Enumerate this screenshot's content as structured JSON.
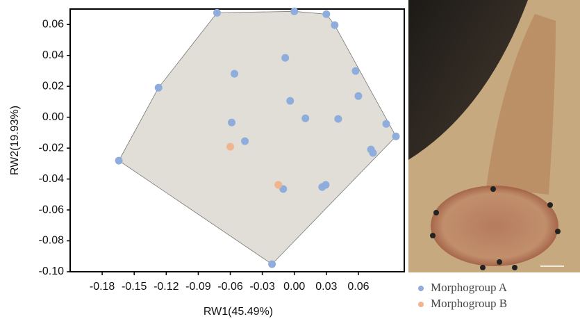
{
  "chart_data": {
    "type": "scatter",
    "x_label": "RW1(45.49%)",
    "y_label": "RW2(19.93%)",
    "xlim": [
      -0.21,
      0.103
    ],
    "ylim": [
      -0.1,
      0.07
    ],
    "xticks": [
      -0.18,
      -0.15,
      -0.12,
      -0.09,
      -0.06,
      -0.03,
      {
        "value": 0,
        "label": "0.00"
      },
      0.03,
      0.06
    ],
    "yticks": [
      0.06,
      0.04,
      0.02,
      {
        "value": 0,
        "label": "0.00"
      },
      -0.02,
      -0.04,
      -0.06,
      -0.08,
      {
        "value": -0.1,
        "label": "-0.10"
      }
    ],
    "series": [
      {
        "name": "Morphogroup A",
        "color": "#8eacdc",
        "x": [
          -0.0724,
          0.0,
          0.03,
          0.0378,
          -0.0085,
          -0.0561,
          -0.1272,
          0.0574,
          0.06,
          -0.0039,
          0.0104,
          0.0411,
          -0.0587,
          0.0861,
          0.0952,
          -0.0463,
          0.0718,
          0.0737,
          -0.1644,
          0.0294,
          0.0261,
          -0.0104,
          -0.0209
        ],
        "values": [
          0.0676,
          0.0685,
          0.0667,
          0.0596,
          0.0384,
          0.0281,
          0.0191,
          0.0299,
          0.0137,
          0.0106,
          -0.0007,
          -0.0011,
          -0.0034,
          -0.0043,
          -0.0124,
          -0.0155,
          -0.0209,
          -0.0231,
          -0.0281,
          -0.0438,
          -0.0452,
          -0.0465,
          -0.0951
        ]
      },
      {
        "name": "Morphogroup B",
        "color": "#f0b48f",
        "x": [
          -0.06,
          -0.015
        ],
        "values": [
          -0.0191,
          -0.0438
        ]
      }
    ]
  }
}
